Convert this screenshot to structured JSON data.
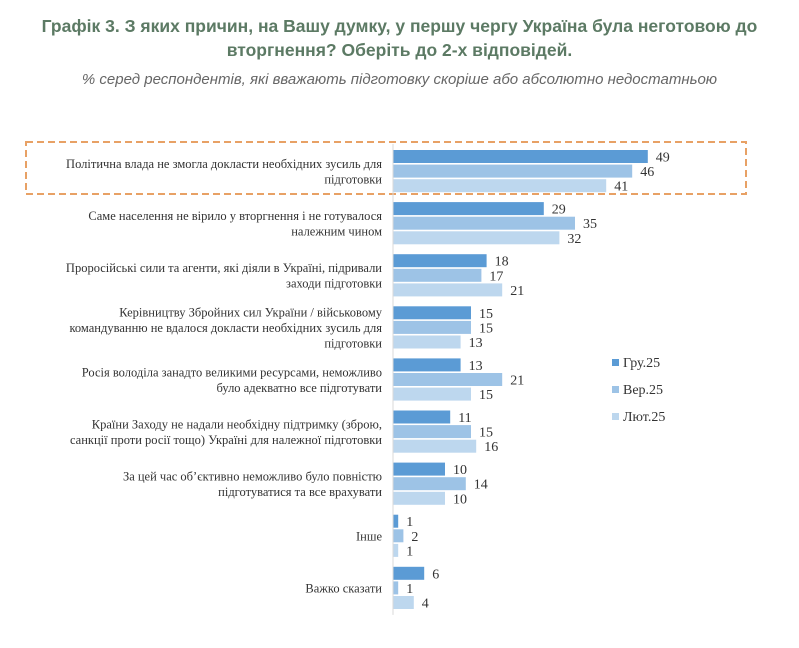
{
  "title_lines": [
    "Графік 3. З яких причин, на Вашу думку, у першу чергу Україна була неготовою до",
    "вторгнення? Оберіть до 2-х відповідей."
  ],
  "subtitle": "% серед респондентів, які вважають підготовку скоріше або абсолютно недостатньою",
  "colors": {
    "title": "#5c7a64",
    "highlight_border": "#e8a165",
    "series": [
      "#5b9bd5",
      "#9dc3e6",
      "#bdd7ee"
    ]
  },
  "highlighted_category_index": 0,
  "chart_data": {
    "type": "bar",
    "orientation": "horizontal",
    "categories": [
      [
        "Політична влада не змогла докласти необхідних зусиль для",
        "підготовки"
      ],
      [
        "Саме населення не вірило у вторгнення і не готувалося",
        "належним чином"
      ],
      [
        "Проросійські сили та агенти, які діяли в Україні, підривали",
        "заходи підготовки"
      ],
      [
        "Керівництву Збройних сил України / військовому",
        "командуванню не вдалося докласти необхідних зусиль для",
        "підготовки"
      ],
      [
        "Росія володіла занадто великими ресурсами, неможливо",
        "було адекватно все підготувати"
      ],
      [
        "Країни Заходу не надали необхідну підтримку (зброю,",
        "санкції проти росії тощо) Україні для належної підготовки"
      ],
      [
        "За цей час об’єктивно неможливо було повністю",
        "підготуватися та все врахувати"
      ],
      [
        "Інше"
      ],
      [
        "Важко сказати"
      ]
    ],
    "series": [
      {
        "name": "Гру.25",
        "values": [
          49,
          29,
          18,
          15,
          13,
          11,
          10,
          1,
          6
        ]
      },
      {
        "name": "Вер.25",
        "values": [
          46,
          35,
          17,
          15,
          21,
          15,
          14,
          2,
          1
        ]
      },
      {
        "name": "Лют.25",
        "values": [
          41,
          32,
          21,
          13,
          15,
          16,
          10,
          1,
          4
        ]
      }
    ],
    "xlim": [
      0,
      50
    ],
    "grid": false,
    "legend_position": "right"
  }
}
